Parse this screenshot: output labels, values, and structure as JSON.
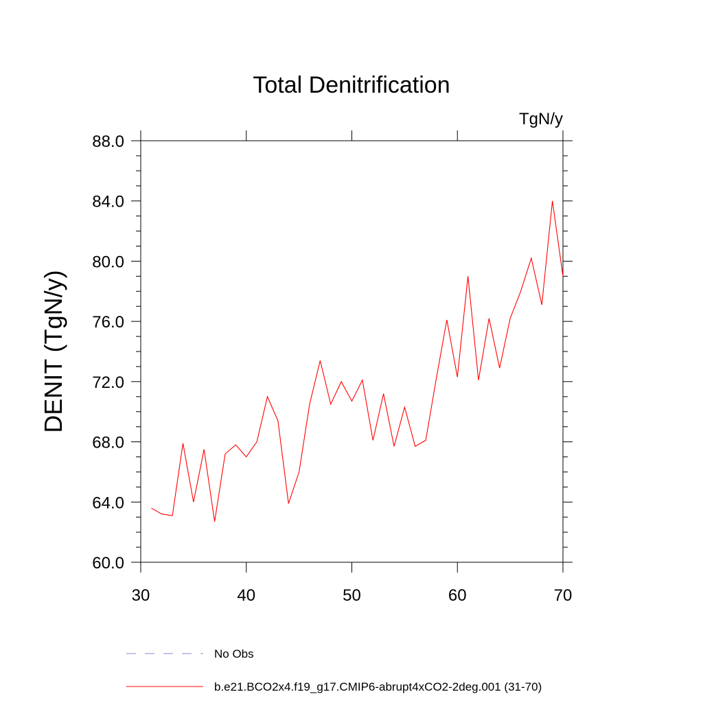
{
  "chart_data": {
    "type": "line",
    "title": "Total Denitrification",
    "units_label": "TgN/y",
    "xlabel": "",
    "ylabel": "DENIT  (TgN/y)",
    "xlim": [
      30,
      70
    ],
    "ylim": [
      60,
      88
    ],
    "x_ticks": [
      30,
      40,
      50,
      60,
      70
    ],
    "x_tick_labels": [
      "30",
      "40",
      "50",
      "60",
      "70"
    ],
    "y_ticks": [
      60,
      64,
      68,
      72,
      76,
      80,
      84,
      88
    ],
    "y_tick_labels": [
      "60.0",
      "64.0",
      "68.0",
      "72.0",
      "76.0",
      "80.0",
      "84.0",
      "88.0"
    ],
    "grid": false,
    "legend_position": "bottom",
    "legend": [
      {
        "label": "No Obs",
        "color": "#8888cc",
        "style": "dashed"
      },
      {
        "label": "b.e21.BCO2x4.f19_g17.CMIP6-abrupt4xCO2-2deg.001 (31-70)",
        "color": "#ff0000",
        "style": "solid"
      }
    ],
    "series": [
      {
        "name": "b.e21.BCO2x4.f19_g17.CMIP6-abrupt4xCO2-2deg.001 (31-70)",
        "color": "#ff0000",
        "x": [
          31,
          32,
          33,
          34,
          35,
          36,
          37,
          38,
          39,
          40,
          41,
          42,
          43,
          44,
          45,
          46,
          47,
          48,
          49,
          50,
          51,
          52,
          53,
          54,
          55,
          56,
          57,
          58,
          59,
          60,
          61,
          62,
          63,
          64,
          65,
          66,
          67,
          68,
          69,
          70
        ],
        "values": [
          63.6,
          63.2,
          63.1,
          67.9,
          64.0,
          67.5,
          62.7,
          67.2,
          67.8,
          67.0,
          68.0,
          71.0,
          69.4,
          63.9,
          66.0,
          70.5,
          73.4,
          70.5,
          72.0,
          70.7,
          72.1,
          68.1,
          71.2,
          67.7,
          70.3,
          67.7,
          68.1,
          72.2,
          76.1,
          72.3,
          79.0,
          72.1,
          76.2,
          72.9,
          76.2,
          78.0,
          80.2,
          77.1,
          84.0,
          79.0
        ]
      }
    ]
  }
}
